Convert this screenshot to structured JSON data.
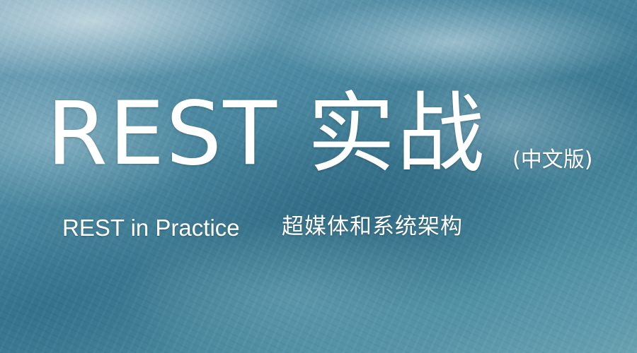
{
  "cover": {
    "title": "REST 实战",
    "edition": "(中文版)",
    "subtitle_en": "REST in Practice",
    "subtitle_cn": "超媒体和系统架构"
  },
  "colors": {
    "text": "#ffffff",
    "background_base": "#3f7c93"
  }
}
